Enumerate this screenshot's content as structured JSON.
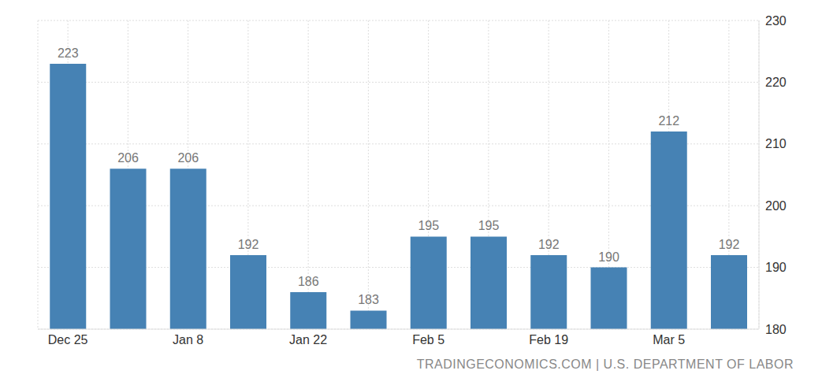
{
  "chart_data": {
    "type": "bar",
    "source": "TRADINGECONOMICS.COM | U.S. DEPARTMENT OF LABOR",
    "categories": [
      "Dec 25",
      null,
      "Jan 8",
      null,
      "Jan 22",
      null,
      "Feb 5",
      null,
      "Feb 19",
      null,
      "Mar 5",
      null
    ],
    "values": [
      223,
      206,
      206,
      192,
      186,
      183,
      195,
      195,
      192,
      190,
      212,
      192
    ],
    "color": "#4682b4",
    "ylim": [
      180,
      230
    ],
    "yticks": [
      180,
      190,
      200,
      210,
      220,
      230
    ],
    "grid": true,
    "data_labels": true
  }
}
